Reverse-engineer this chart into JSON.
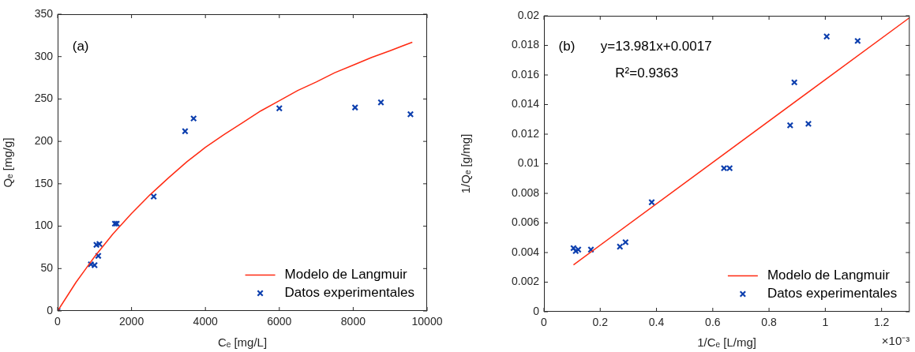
{
  "chart_data": [
    {
      "type": "scatter",
      "xlabel": "Cₑ [mg/L]",
      "ylabel": "Qₑ [mg/g]",
      "xlim": [
        0,
        10000
      ],
      "xticks": [
        0,
        2000,
        4000,
        6000,
        8000,
        10000
      ],
      "ylim": [
        0,
        350
      ],
      "yticks": [
        0,
        50,
        100,
        150,
        200,
        250,
        300,
        350
      ],
      "grid": false,
      "legend": "bottom right",
      "annotations": [
        "(a)"
      ],
      "series": [
        {
          "name": "Modelo de Langmuir",
          "type": "line",
          "marker": "none",
          "color": "#ff2a12",
          "x": [
            0,
            250,
            500,
            750,
            1000,
            1500,
            2000,
            2500,
            3000,
            3500,
            4000,
            4500,
            5000,
            5500,
            6000,
            6500,
            7000,
            7500,
            8000,
            8500,
            9000,
            9600
          ],
          "values": [
            0,
            17,
            34,
            49,
            64,
            91,
            115,
            137,
            157,
            176,
            193,
            208,
            222,
            236,
            248,
            260,
            270,
            281,
            290,
            299,
            307,
            317
          ]
        },
        {
          "name": "Datos experimentales",
          "type": "scatter",
          "marker": "cross",
          "color": "#0d3fae",
          "x": [
            0,
            900,
            1000,
            1050,
            1100,
            1130,
            1550,
            1600,
            2600,
            3450,
            3680,
            6000,
            8050,
            8750,
            9550
          ],
          "values": [
            0,
            55,
            54,
            78,
            65,
            79,
            103,
            103,
            135,
            212,
            227,
            239,
            240,
            246,
            232
          ]
        }
      ]
    },
    {
      "type": "scatter",
      "xlabel": "1/Cₑ [L/mg]",
      "ylabel": "1/Qₑ [g/mg]",
      "xlim": [
        0,
        1.3
      ],
      "xticks": [
        0,
        0.2,
        0.4,
        0.6,
        0.8,
        1,
        1.2
      ],
      "ylim": [
        0,
        0.02
      ],
      "yticks": [
        0,
        0.002,
        0.004,
        0.006,
        0.008,
        0.01,
        0.012,
        0.014,
        0.016,
        0.018,
        0.02
      ],
      "grid": false,
      "legend": "bottom right",
      "annotations": [
        "(b)",
        "y=13.981x+0.0017",
        "R²=0.9363",
        "×10⁻³"
      ],
      "series": [
        {
          "name": "Modelo de Langmuir",
          "type": "line",
          "marker": "none",
          "color": "#ff2a12",
          "x": [
            0.105,
            1.3
          ],
          "values": [
            0.00317,
            0.01988
          ]
        },
        {
          "name": "Datos experimentales",
          "type": "scatter",
          "marker": "cross",
          "color": "#0d3fae",
          "x": [
            0.105,
            0.113,
            0.122,
            0.167,
            0.27,
            0.29,
            0.383,
            0.64,
            0.66,
            0.875,
            0.89,
            0.94,
            1.005,
            1.115
          ],
          "values": [
            0.0043,
            0.0041,
            0.0042,
            0.0042,
            0.0044,
            0.0047,
            0.0074,
            0.0097,
            0.0097,
            0.0126,
            0.0155,
            0.0127,
            0.0186,
            0.0183
          ]
        }
      ]
    }
  ]
}
